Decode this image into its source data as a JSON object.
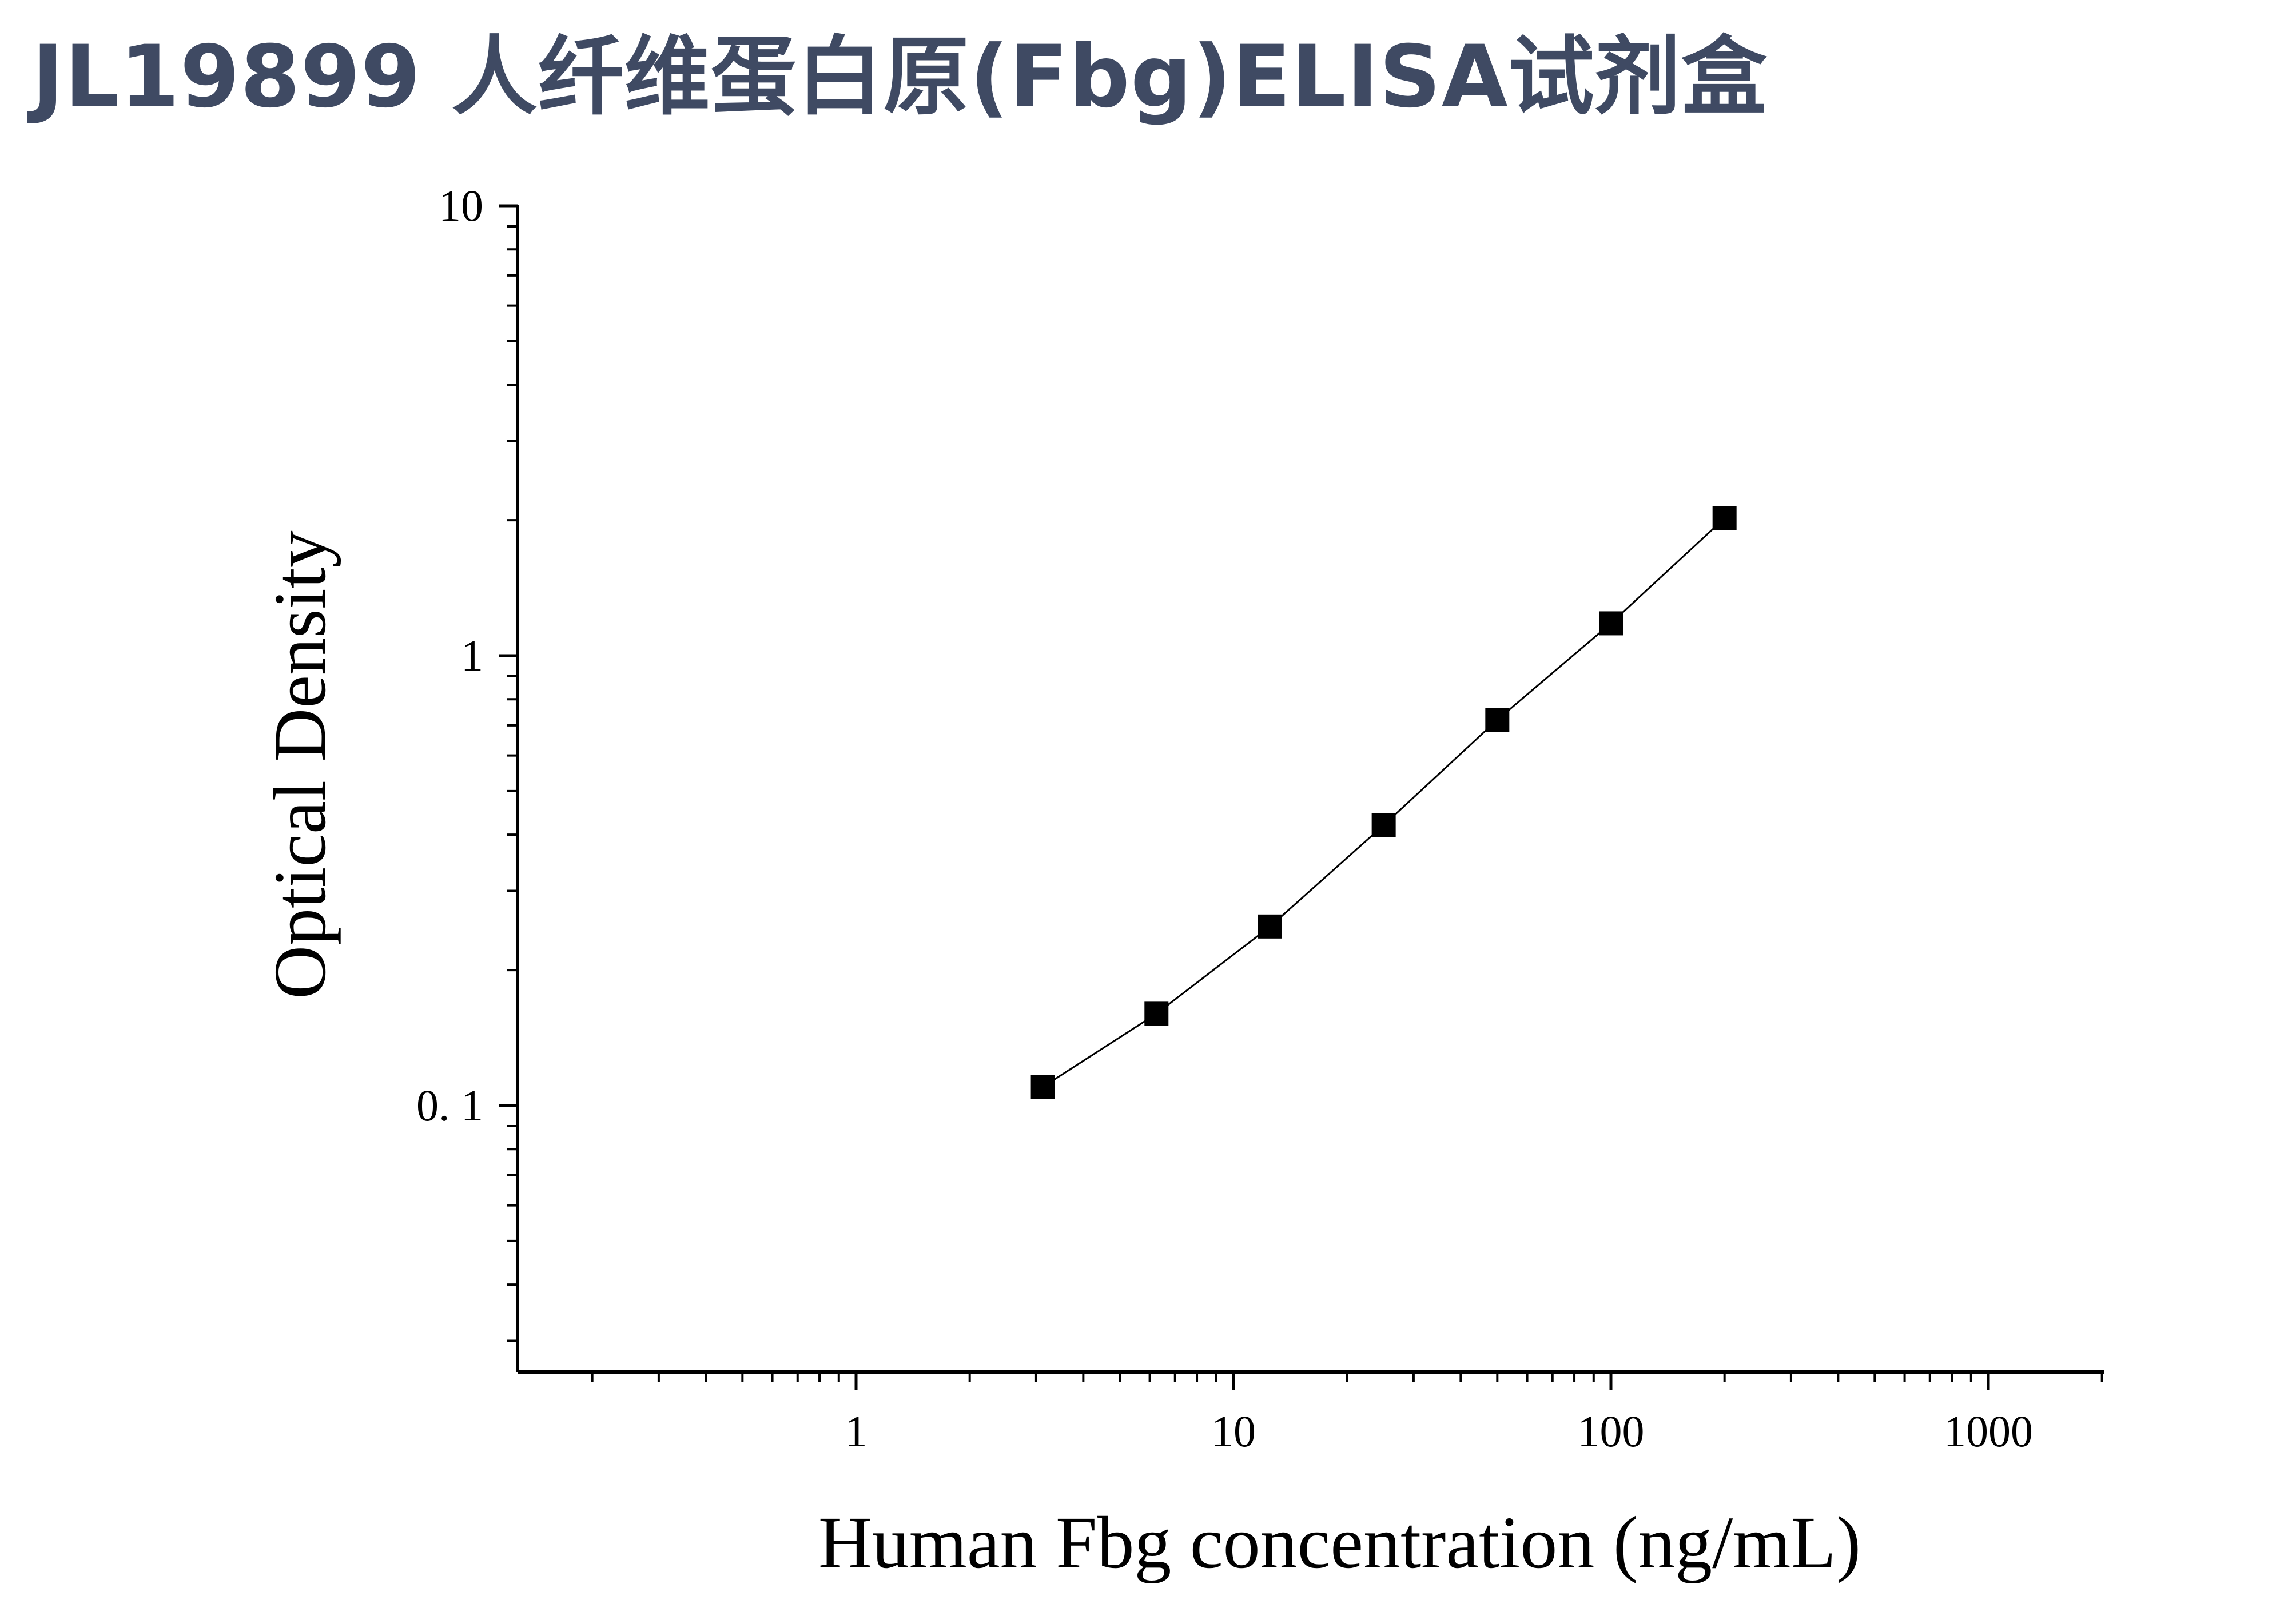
{
  "title": "JL19899 人纤维蛋白原(Fbg)ELISA试剂盒",
  "chart_data": {
    "type": "scatter",
    "title": "JL19899 人纤维蛋白原(Fbg)ELISA试剂盒",
    "xlabel": "Human Fbg concentration (ng/mL)",
    "ylabel": "Optical Density",
    "xscale": "log",
    "yscale": "log",
    "xlim": [
      0.1,
      2000
    ],
    "ylim": [
      0.025,
      10
    ],
    "xticks": [
      1,
      10,
      100,
      1000
    ],
    "xtick_labels": [
      "1",
      "10",
      "100",
      "1000"
    ],
    "yticks": [
      0.1,
      1,
      10
    ],
    "ytick_labels": [
      "0. 1",
      "1",
      "10"
    ],
    "grid": false,
    "legend": "none",
    "series": [
      {
        "marker": "square",
        "line": "connected",
        "color": "#000000",
        "points": [
          {
            "x": 3.125,
            "y": 0.11
          },
          {
            "x": 6.25,
            "y": 0.16
          },
          {
            "x": 12.5,
            "y": 0.25
          },
          {
            "x": 25,
            "y": 0.42
          },
          {
            "x": 50,
            "y": 0.72
          },
          {
            "x": 100,
            "y": 1.18
          },
          {
            "x": 200,
            "y": 2.02
          }
        ]
      }
    ]
  }
}
